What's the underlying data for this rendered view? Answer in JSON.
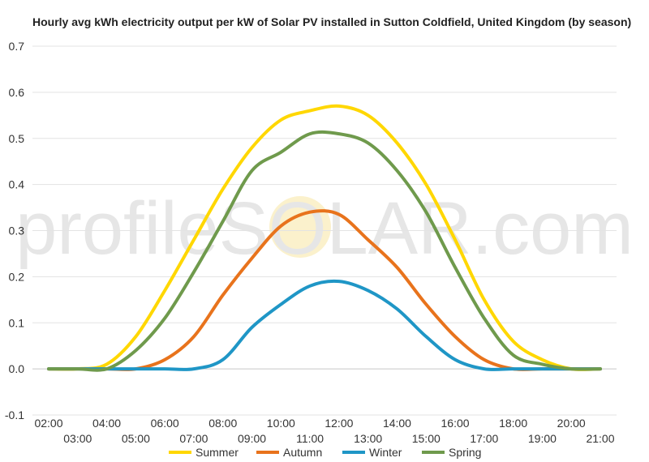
{
  "chart_data": {
    "type": "line",
    "title": "Hourly avg kWh electricity output per kW of Solar PV installed in Sutton Coldfield, United Kingdom (by season)",
    "xlabel": "",
    "ylabel": "",
    "ylim": [
      -0.1,
      0.7
    ],
    "y_ticks": [
      "-0.1",
      "0.0",
      "0.1",
      "0.2",
      "0.3",
      "0.4",
      "0.5",
      "0.6",
      "0.7"
    ],
    "x_ticks_upper": [
      "02:00",
      "04:00",
      "06:00",
      "08:00",
      "10:00",
      "12:00",
      "14:00",
      "16:00",
      "18:00",
      "20:00"
    ],
    "x_ticks_lower": [
      "03:00",
      "05:00",
      "07:00",
      "09:00",
      "11:00",
      "13:00",
      "15:00",
      "17:00",
      "19:00",
      "21:00"
    ],
    "grid": true,
    "legend": "bottom",
    "x": [
      "02:00",
      "03:00",
      "04:00",
      "05:00",
      "06:00",
      "07:00",
      "08:00",
      "09:00",
      "10:00",
      "11:00",
      "12:00",
      "13:00",
      "14:00",
      "15:00",
      "16:00",
      "17:00",
      "18:00",
      "19:00",
      "20:00",
      "21:00"
    ],
    "series": [
      {
        "name": "Summer",
        "color": "#ffd700",
        "values": [
          0.0,
          0.0,
          0.01,
          0.07,
          0.17,
          0.28,
          0.39,
          0.48,
          0.54,
          0.56,
          0.57,
          0.55,
          0.49,
          0.4,
          0.28,
          0.15,
          0.06,
          0.02,
          0.0,
          0.0
        ]
      },
      {
        "name": "Autumn",
        "color": "#e8731c",
        "values": [
          0.0,
          0.0,
          0.0,
          0.0,
          0.02,
          0.07,
          0.16,
          0.24,
          0.31,
          0.34,
          0.335,
          0.28,
          0.22,
          0.14,
          0.07,
          0.02,
          0.0,
          0.0,
          0.0,
          0.0
        ]
      },
      {
        "name": "Winter",
        "color": "#1f96c6",
        "values": [
          0.0,
          0.0,
          0.0,
          0.0,
          0.0,
          0.0,
          0.02,
          0.09,
          0.14,
          0.18,
          0.19,
          0.17,
          0.13,
          0.07,
          0.02,
          0.0,
          0.0,
          0.0,
          0.0,
          0.0
        ]
      },
      {
        "name": "Spring",
        "color": "#6f9a4c",
        "values": [
          0.0,
          0.0,
          0.0,
          0.04,
          0.11,
          0.21,
          0.32,
          0.43,
          0.47,
          0.51,
          0.51,
          0.49,
          0.43,
          0.34,
          0.22,
          0.11,
          0.03,
          0.01,
          0.0,
          0.0
        ]
      }
    ],
    "watermark": "profileSOLAR.com"
  }
}
